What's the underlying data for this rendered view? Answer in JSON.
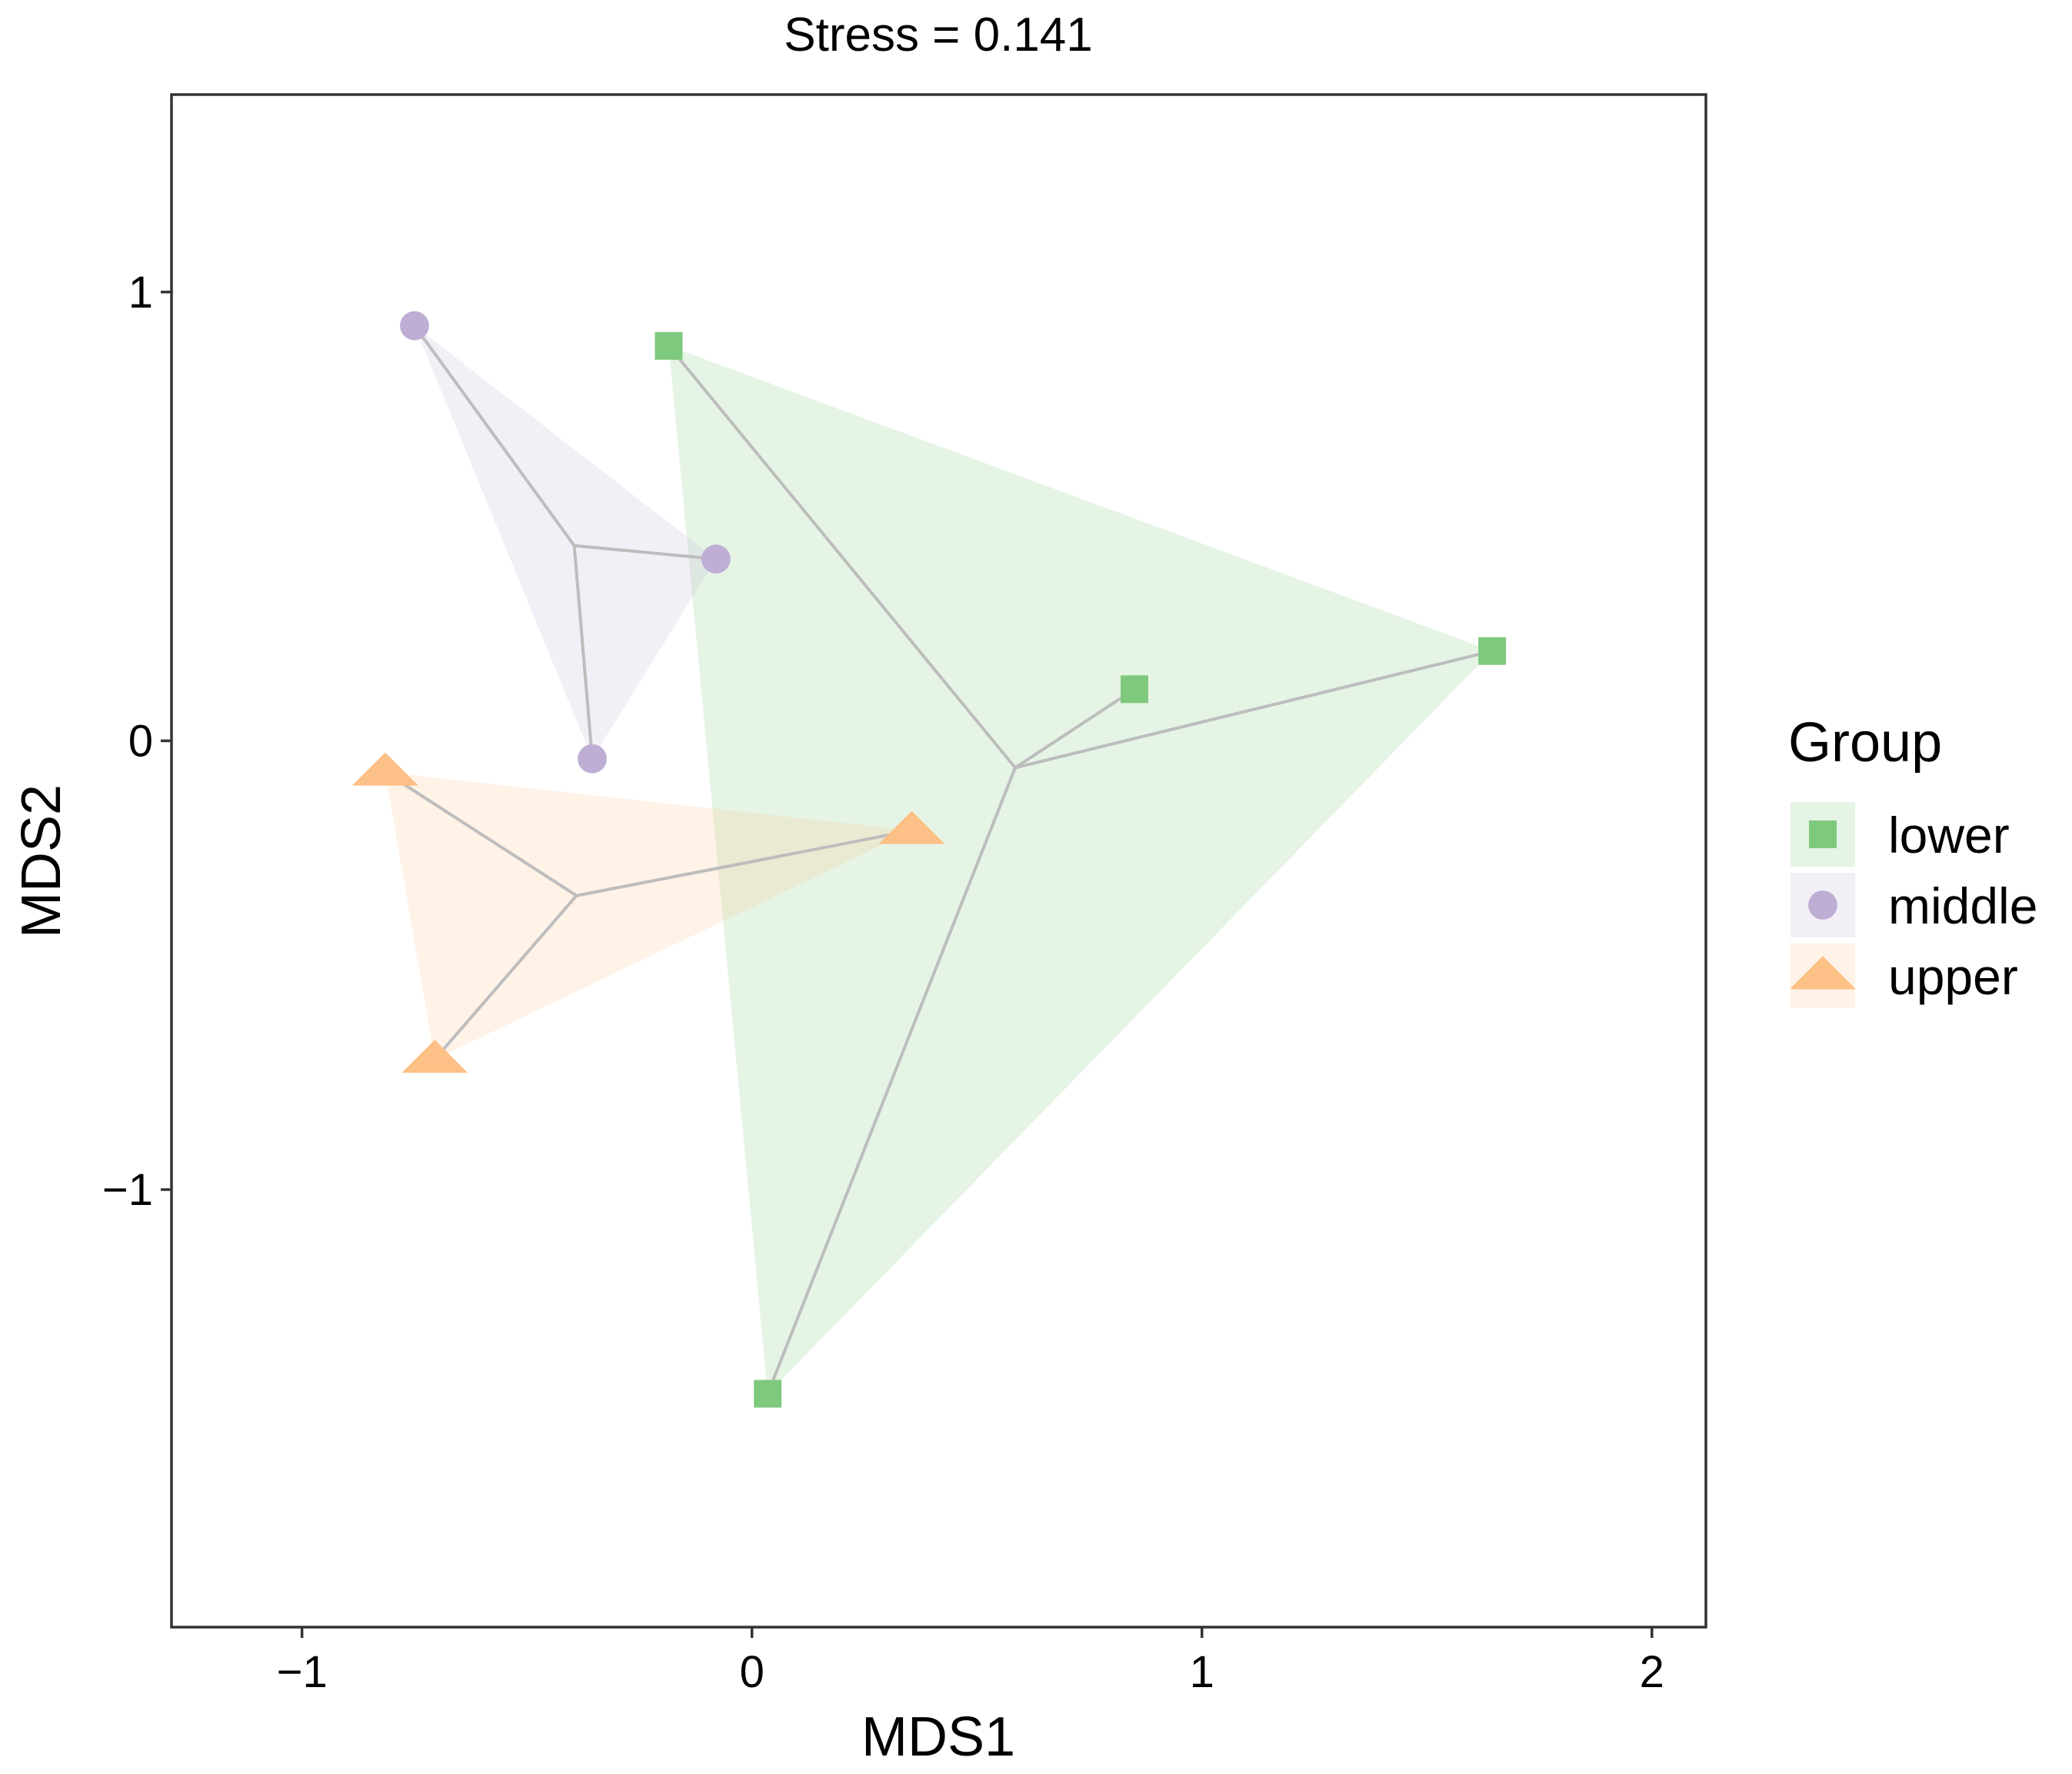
{
  "chart_data": {
    "type": "scatter",
    "title": "Stress = 0.141",
    "xlabel": "MDS1",
    "ylabel": "MDS2",
    "xlim": [
      -1.29,
      2.12
    ],
    "ylim": [
      -1.975,
      1.44
    ],
    "xticks": [
      -1,
      0,
      1,
      2
    ],
    "yticks": [
      -1,
      0,
      1
    ],
    "xtick_labels": [
      "−1",
      "0",
      "1",
      "2"
    ],
    "ytick_labels": [
      "−1",
      "0",
      "1"
    ],
    "grid": false,
    "legend_title": "Group",
    "legend_position": "right",
    "series": [
      {
        "name": "lower",
        "marker": "square",
        "color": "#7fc97f",
        "hull_color": "#7fc97f",
        "centroid": {
          "x": 0.585,
          "y": -0.06
        },
        "points": [
          {
            "x": -0.185,
            "y": 0.88
          },
          {
            "x": 0.85,
            "y": 0.115
          },
          {
            "x": 1.645,
            "y": 0.2
          },
          {
            "x": 0.035,
            "y": -1.455
          }
        ]
      },
      {
        "name": "middle",
        "marker": "circle",
        "color": "#beaed4",
        "hull_color": "#beaed4",
        "centroid": {
          "x": -0.395,
          "y": 0.435
        },
        "points": [
          {
            "x": -0.75,
            "y": 0.925
          },
          {
            "x": -0.08,
            "y": 0.405
          },
          {
            "x": -0.355,
            "y": -0.04
          }
        ]
      },
      {
        "name": "upper",
        "marker": "triangle",
        "color": "#fdc086",
        "hull_color": "#fdc086",
        "centroid": {
          "x": -0.39,
          "y": -0.345
        },
        "points": [
          {
            "x": -0.815,
            "y": -0.07
          },
          {
            "x": 0.355,
            "y": -0.2
          },
          {
            "x": -0.705,
            "y": -0.71
          }
        ]
      }
    ]
  }
}
